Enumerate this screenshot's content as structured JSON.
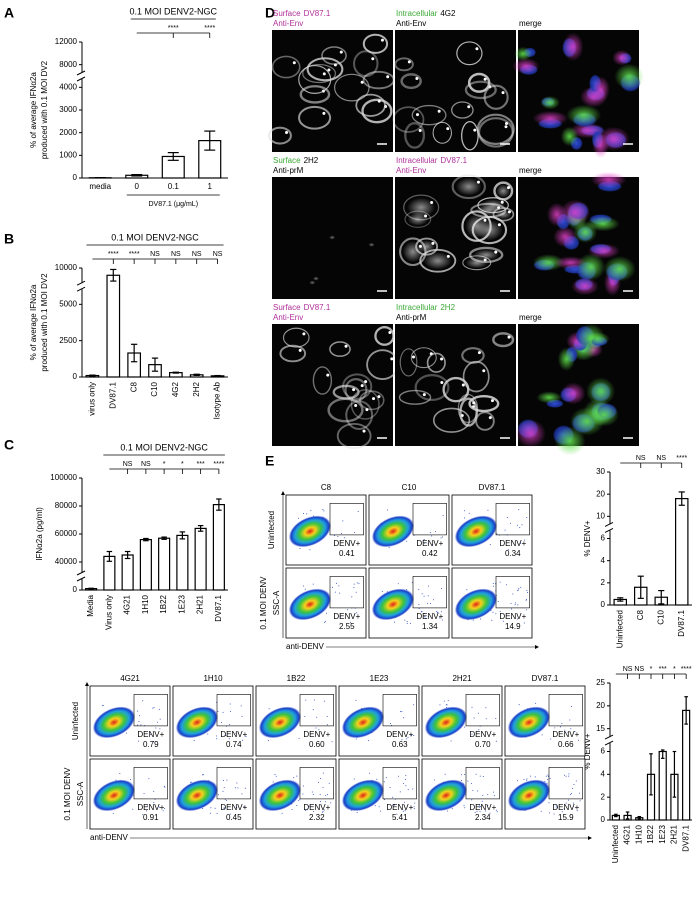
{
  "panel_labels": [
    "A",
    "B",
    "C",
    "D",
    "E"
  ],
  "chart_data": [
    {
      "type": "bar",
      "title": "0.1 MOI DENV2-NGC",
      "y_label": [
        "% of average IFNα2a",
        "produced with 0.1 MOI DV2"
      ],
      "x_label": "DV87.1 (μg/mL)",
      "categories": [
        "media",
        "0",
        "0.1",
        "1"
      ],
      "values": [
        10,
        120,
        950,
        1650
      ],
      "errors": [
        5,
        30,
        170,
        420
      ],
      "significance": [
        "****",
        "****"
      ],
      "ylim": [
        0,
        12000
      ],
      "yticks": [
        0,
        1000,
        2000,
        3000,
        4000,
        8000,
        12000
      ],
      "color": "#ffffff"
    },
    {
      "type": "bar",
      "title": "0.1 MOI DENV2-NGC",
      "y_label": [
        "% of average IFNα2a",
        "produced with 0.1 MOI DV2"
      ],
      "categories": [
        "virus only",
        "DV87.1",
        "C8",
        "C10",
        "4G2",
        "2H2",
        "Isotype Ab"
      ],
      "values": [
        100,
        9000,
        1650,
        850,
        300,
        150,
        80
      ],
      "errors": [
        30,
        800,
        600,
        450,
        30,
        40,
        20
      ],
      "significance": [
        "****",
        "****",
        "NS",
        "NS",
        "NS",
        "NS"
      ],
      "ylim": [
        0,
        10000
      ],
      "yticks": [
        0,
        2500,
        5000,
        10000
      ],
      "color": "#ffffff"
    },
    {
      "type": "bar",
      "title": "0.1 MOI DENV2-NGC",
      "y_label": "IFNα2a (pg/ml)",
      "categories": [
        "Media",
        "Virus only",
        "4G21",
        "1H10",
        "1B22",
        "1E23",
        "2H21",
        "DV87.1"
      ],
      "values": [
        2000,
        44000,
        45000,
        56000,
        57000,
        59000,
        64000,
        81000
      ],
      "errors": [
        500,
        3500,
        2500,
        800,
        800,
        2500,
        2000,
        4000
      ],
      "significance": [
        "NS",
        "NS",
        "*",
        "*",
        "***",
        "****"
      ],
      "ylim": [
        0,
        100000
      ],
      "yticks": [
        0,
        40000,
        60000,
        80000,
        100000
      ],
      "color": "#ffffff"
    },
    {
      "type": "bar",
      "y_label": "% DENV+",
      "categories": [
        "Uninfected",
        "C8",
        "C10",
        "DV87.1"
      ],
      "values": [
        0.5,
        1.6,
        0.7,
        18
      ],
      "errors": [
        0.15,
        1.0,
        0.6,
        3
      ],
      "significance": [
        "NS",
        "NS",
        "****"
      ],
      "ylim": [
        0,
        30
      ],
      "yticks": [
        0,
        2,
        4,
        6,
        10,
        20,
        30
      ],
      "color": "#ffffff"
    },
    {
      "type": "bar",
      "y_label": "% DENV+",
      "categories": [
        "Uninfected",
        "4G21",
        "1H10",
        "1B22",
        "1E23",
        "2H21",
        "DV87.1"
      ],
      "values": [
        0.4,
        0.4,
        0.2,
        4,
        6,
        4,
        19
      ],
      "errors": [
        0.1,
        0.3,
        0.1,
        1.8,
        0.6,
        2,
        3
      ],
      "significance": [
        "NS",
        "NS",
        "*",
        "***",
        "*",
        "****"
      ],
      "ylim": [
        0,
        25
      ],
      "yticks": [
        0,
        2,
        4,
        6,
        15,
        20,
        25
      ],
      "color": "#ffffff"
    }
  ],
  "microscopy": {
    "rows": [
      {
        "panels": [
          {
            "lines": [
              [
                {
                  "text": "Surface",
                  "color": "#b0309a"
                },
                {
                  "text": "DV87.1",
                  "color": "#b0309a"
                }
              ],
              [
                {
                  "text": "Anti-Env",
                  "color": "#b0309a"
                }
              ]
            ]
          },
          {
            "lines": [
              [
                {
                  "text": "Intracellular",
                  "color": "#3aaa35"
                },
                {
                  "text": "4G2",
                  "color": "#000000"
                }
              ],
              [
                {
                  "text": "Anti-Env",
                  "color": "#000000"
                }
              ]
            ]
          },
          {
            "lines": [
              [
                {
                  "text": "merge",
                  "color": "#000000"
                }
              ]
            ]
          }
        ]
      },
      {
        "panels": [
          {
            "lines": [
              [
                {
                  "text": "Surface",
                  "color": "#3aaa35"
                },
                {
                  "text": "2H2",
                  "color": "#000000"
                }
              ],
              [
                {
                  "text": "Anti-prM",
                  "color": "#000000"
                }
              ]
            ]
          },
          {
            "lines": [
              [
                {
                  "text": "Intracellular",
                  "color": "#b0309a"
                },
                {
                  "text": "DV87.1",
                  "color": "#b0309a"
                }
              ],
              [
                {
                  "text": "Anti-Env",
                  "color": "#b0309a"
                }
              ]
            ]
          },
          {
            "lines": [
              [
                {
                  "text": "merge",
                  "color": "#000000"
                }
              ]
            ]
          }
        ]
      },
      {
        "panels": [
          {
            "lines": [
              [
                {
                  "text": "Surface",
                  "color": "#b0309a"
                },
                {
                  "text": "DV87.1",
                  "color": "#b0309a"
                }
              ],
              [
                {
                  "text": "Anti-Env",
                  "color": "#b0309a"
                }
              ]
            ]
          },
          {
            "lines": [
              [
                {
                  "text": "Intracellular",
                  "color": "#3aaa35"
                },
                {
                  "text": "2H2",
                  "color": "#3aaa35"
                }
              ],
              [
                {
                  "text": "Anti-prM",
                  "color": "#000000"
                }
              ]
            ]
          },
          {
            "lines": [
              [
                {
                  "text": "merge",
                  "color": "#000000"
                }
              ]
            ]
          }
        ]
      }
    ]
  },
  "flow": [
    {
      "columns": [
        "C8",
        "C10",
        "DV87.1"
      ],
      "rows": [
        "Uninfected",
        "0.1 MOI DENV"
      ],
      "y_label": "SSC-A",
      "x_label": "anti-DENV",
      "gate_label": "DENV+",
      "values": [
        [
          "0.41",
          "0.42",
          "0.34"
        ],
        [
          "2.55",
          "1.34",
          "14.9"
        ]
      ]
    },
    {
      "columns": [
        "4G21",
        "1H10",
        "1B22",
        "1E23",
        "2H21",
        "DV87.1"
      ],
      "rows": [
        "Uninfected",
        "0.1 MOI DENV"
      ],
      "y_label": "SSC-A",
      "x_label": "anti-DENV",
      "gate_label": "DENV+",
      "values": [
        [
          "0.79",
          "0.74",
          "0.60",
          "0.63",
          "0.70",
          "0.66"
        ],
        [
          "0.91",
          "0.45",
          "2.32",
          "5.41",
          "2.34",
          "15.9"
        ]
      ]
    }
  ]
}
